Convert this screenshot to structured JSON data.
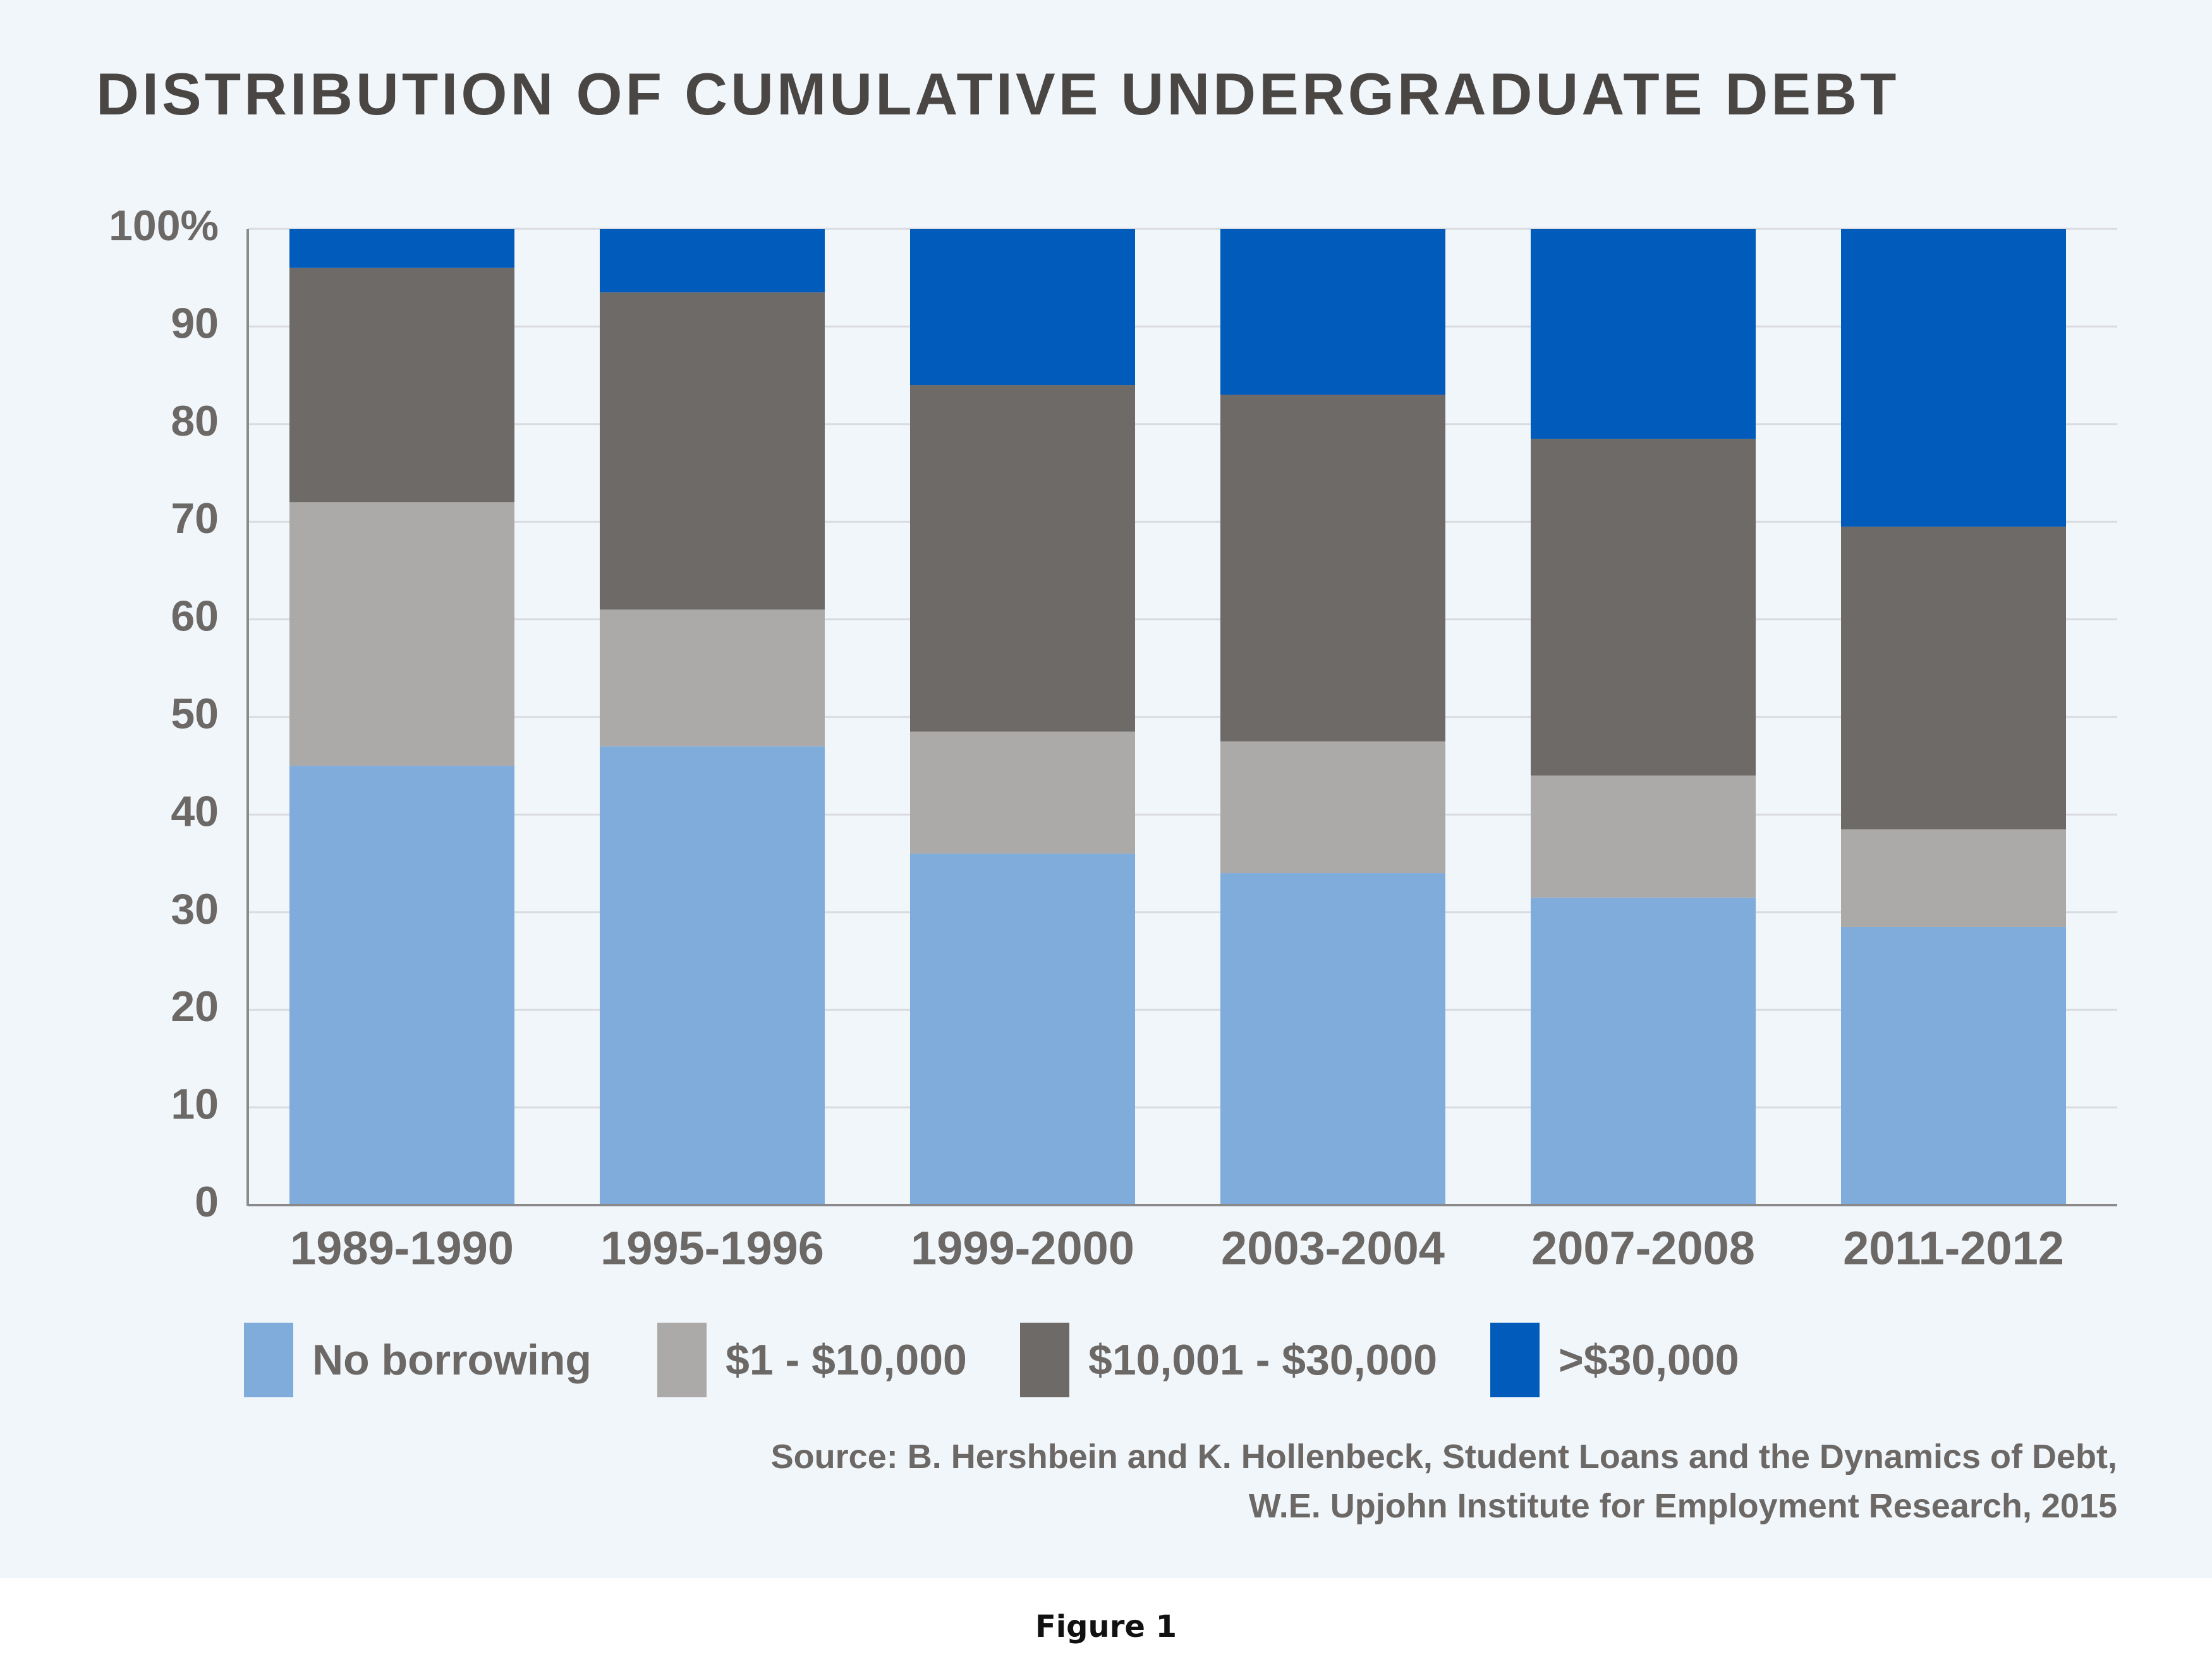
{
  "chart_data": {
    "type": "bar",
    "stacked": true,
    "title": "DISTRIBUTION OF CUMULATIVE UNDERGRADUATE DEBT",
    "xlabel": "",
    "ylabel": "",
    "ylim": [
      0,
      100
    ],
    "yticks": [
      0,
      10,
      20,
      30,
      40,
      50,
      60,
      70,
      80,
      90,
      100
    ],
    "ytick_labels": [
      "0",
      "10",
      "20",
      "30",
      "40",
      "50",
      "60",
      "70",
      "80",
      "90",
      "100%"
    ],
    "grid": true,
    "legend_position": "bottom",
    "categories": [
      "1989-1990",
      "1995-1996",
      "1999-2000",
      "2003-2004",
      "2007-2008",
      "2011-2012"
    ],
    "series": [
      {
        "name": "No borrowing",
        "color": "#80acdc",
        "values": [
          45,
          47,
          36,
          34,
          31.5,
          28.5
        ]
      },
      {
        "name": "$1 - $10,000",
        "color": "#abaaa8",
        "values": [
          27,
          14,
          12.5,
          13.5,
          12.5,
          10
        ]
      },
      {
        "name": "$10,001 - $30,000",
        "color": "#6d6a67",
        "values": [
          24,
          32.5,
          35.5,
          35.5,
          34.5,
          31
        ]
      },
      {
        "name": ">$30,000",
        "color": "#005bbb",
        "values": [
          4,
          6.5,
          16,
          17,
          21.5,
          30.5
        ]
      }
    ]
  },
  "source": {
    "line1": "Source: B. Hershbein and K. Hollenbeck, Student Loans and the Dynamics of Debt,",
    "line2": "W.E. Upjohn Institute for Employment Research, 2015"
  },
  "caption": "Figure 1",
  "colors": {
    "panel_background": "#f1f6fb",
    "gridline": "#d9dbdf",
    "axis": "#8a8a8a",
    "text": "#6b6866",
    "title": "#4a4644"
  }
}
